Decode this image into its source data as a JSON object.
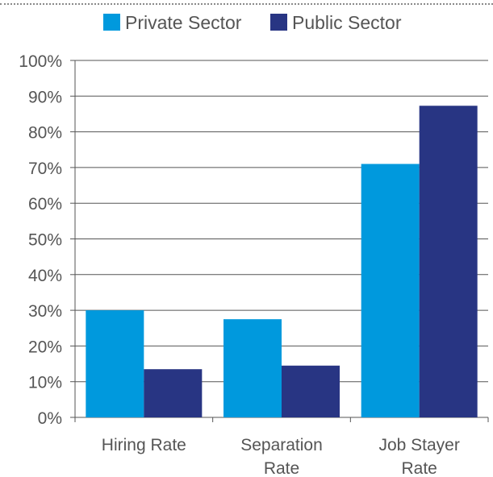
{
  "chart_data": {
    "type": "bar",
    "title": "",
    "xlabel": "",
    "ylabel": "",
    "categories": [
      [
        "Hiring Rate"
      ],
      [
        "Separation",
        "Rate"
      ],
      [
        "Job Stayer",
        "Rate"
      ]
    ],
    "series": [
      {
        "name": "Private Sector",
        "color": "#0099dd",
        "values": [
          30,
          27.5,
          71
        ]
      },
      {
        "name": "Public Sector",
        "color": "#283583",
        "values": [
          13.5,
          14.5,
          87.3
        ]
      }
    ],
    "ylim": [
      0,
      100
    ],
    "yticks": [
      "0%",
      "10%",
      "20%",
      "30%",
      "40%",
      "50%",
      "60%",
      "70%",
      "80%",
      "90%",
      "100%"
    ],
    "grid": true,
    "gridColor": "#555555",
    "legend_position": "top-center"
  }
}
